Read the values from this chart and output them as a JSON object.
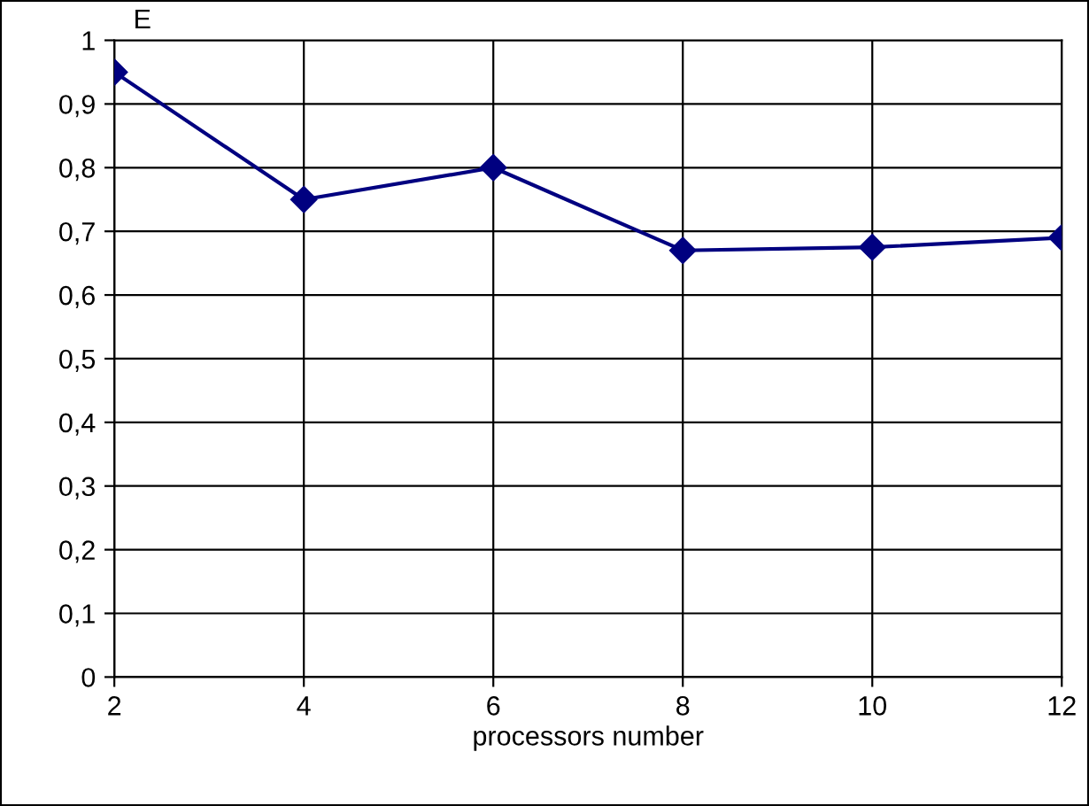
{
  "chart_data": {
    "type": "line",
    "ylabel": "E",
    "xlabel": "processors number",
    "x": [
      2,
      4,
      6,
      8,
      10,
      12
    ],
    "series": [
      {
        "color": "#000080",
        "values": [
          0.95,
          0.75,
          0.8,
          0.67,
          0.675,
          0.69
        ]
      }
    ],
    "xlim": [
      2,
      12
    ],
    "xticks": [
      2,
      4,
      6,
      8,
      10,
      12
    ],
    "ylim": [
      0,
      1
    ],
    "yticks": [
      0,
      {
        "value": 0.1,
        "label": "0,1"
      },
      {
        "value": 0.2,
        "label": "0,2"
      },
      {
        "value": 0.3,
        "label": "0,3"
      },
      {
        "value": 0.4,
        "label": "0,4"
      },
      {
        "value": 0.5,
        "label": "0,5"
      },
      {
        "value": 0.6,
        "label": "0,6"
      },
      {
        "value": 0.7,
        "label": "0,7"
      },
      {
        "value": 0.8,
        "label": "0,8"
      },
      {
        "value": 0.9,
        "label": "0,9"
      },
      1
    ],
    "grid": true,
    "marker": "diamond",
    "line_style": "solid"
  }
}
